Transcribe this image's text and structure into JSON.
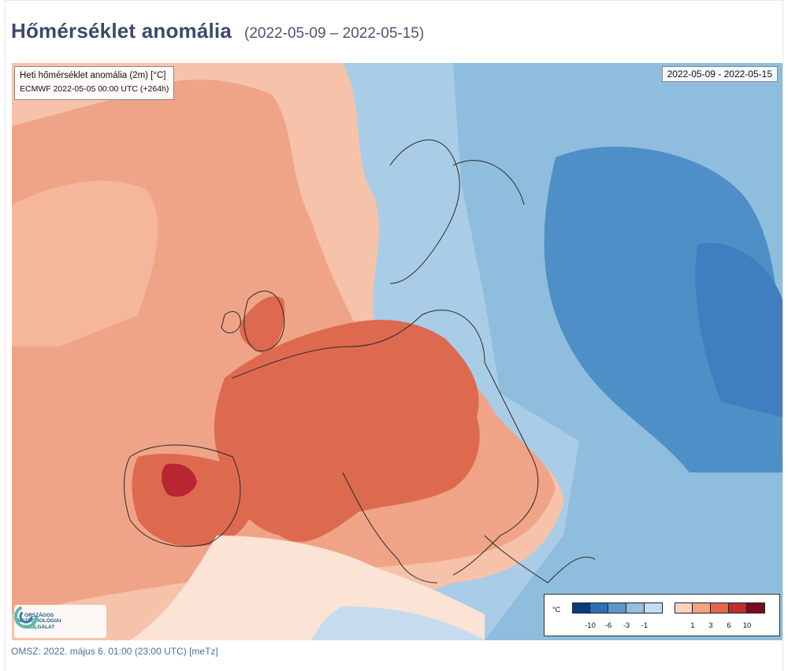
{
  "page": {
    "title": "Hőmérséklet anomália",
    "date_range": "(2022-05-09 – 2022-05-15)",
    "footer": "OMSZ: 2022. május 6. 01:00 (23:00  UTC)  [meTz]"
  },
  "map": {
    "variable_label": "Heti hőmérséklet anomália (2m) [°C]",
    "model_run": "ECMWF 2022-05-05 00:00 UTC (+264h)",
    "valid_period": "2022-05-09 - 2022-05-15"
  },
  "logo": {
    "name": "ORSZÁGOS\nMETEOROLÓGIAI\nSZOLGÁLAT"
  },
  "legend": {
    "unit": "°C",
    "cold_ticks": [
      "-10",
      "-6",
      "-3",
      "-1"
    ],
    "warm_ticks": [
      "1",
      "3",
      "6",
      "10"
    ],
    "cold_colors": [
      "#0b3b7e",
      "#2f6fb4",
      "#5c97cc",
      "#93bfe0",
      "#c4dcee"
    ],
    "warm_colors": [
      "#fbd3c0",
      "#f4a383",
      "#e2684b",
      "#c22a2c",
      "#7a0a1e"
    ]
  },
  "colors": {
    "title": "#3b4a6b",
    "footer": "#4a6fa0"
  }
}
